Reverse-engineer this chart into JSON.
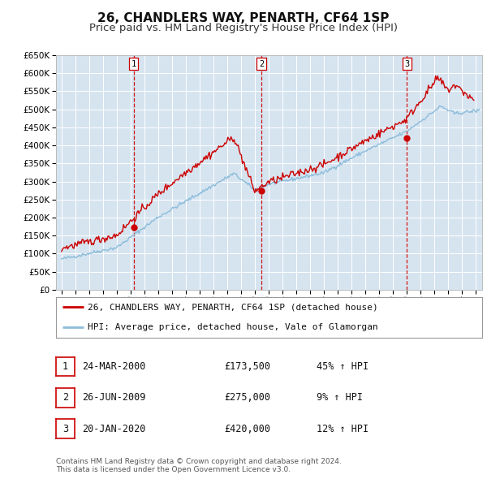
{
  "title": "26, CHANDLERS WAY, PENARTH, CF64 1SP",
  "subtitle": "Price paid vs. HM Land Registry's House Price Index (HPI)",
  "background_color": "#f5f5f5",
  "plot_bg_color": "#d6e4f0",
  "grid_color": "#ffffff",
  "ylim": [
    0,
    650000
  ],
  "yticks": [
    0,
    50000,
    100000,
    150000,
    200000,
    250000,
    300000,
    350000,
    400000,
    450000,
    500000,
    550000,
    600000,
    650000
  ],
  "hpi_color": "#8bbcda",
  "price_color": "#cc0000",
  "sale_marker_color": "#cc0000",
  "sale_dates": [
    2000.23,
    2009.49,
    2020.05
  ],
  "sale_prices": [
    173500,
    275000,
    420000
  ],
  "sale_labels": [
    "1",
    "2",
    "3"
  ],
  "vline_color": "#cc0000",
  "legend_price_label": "26, CHANDLERS WAY, PENARTH, CF64 1SP (detached house)",
  "legend_hpi_label": "HPI: Average price, detached house, Vale of Glamorgan",
  "table_rows": [
    [
      "1",
      "24-MAR-2000",
      "£173,500",
      "45% ↑ HPI"
    ],
    [
      "2",
      "26-JUN-2009",
      "£275,000",
      "9% ↑ HPI"
    ],
    [
      "3",
      "20-JAN-2020",
      "£420,000",
      "12% ↑ HPI"
    ]
  ],
  "footnote": "Contains HM Land Registry data © Crown copyright and database right 2024.\nThis data is licensed under the Open Government Licence v3.0.",
  "title_fontsize": 11,
  "subtitle_fontsize": 9.5,
  "tick_fontsize": 7.5,
  "legend_fontsize": 8,
  "table_fontsize": 8.5,
  "footnote_fontsize": 6.5
}
